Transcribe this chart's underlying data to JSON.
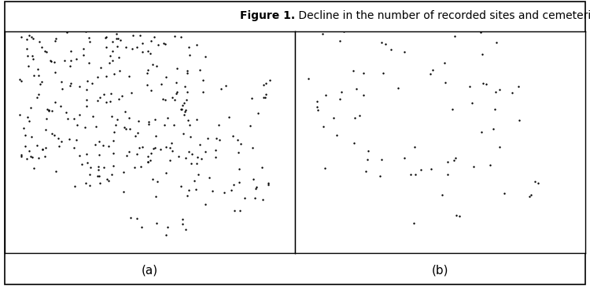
{
  "title_bold": "Figure 1.",
  "title_normal": " Decline in the number of recorded sites and cemeteries in Greece",
  "label_a": "(a)",
  "label_b": "(b)",
  "title_fontsize": 10,
  "label_fontsize": 11,
  "background_color": "#ffffff",
  "dot_color": "#000000",
  "dot_size_a": 3.0,
  "dot_size_b": 3.0,
  "n_dots_a": 320,
  "n_dots_b": 75,
  "seed_a": 42,
  "seed_b": 99,
  "xlim": [
    19.0,
    29.8
  ],
  "ylim": [
    34.3,
    42.2
  ],
  "coastline_lw": 0.5,
  "border_lw": 0.4,
  "spine_lw": 1.0
}
